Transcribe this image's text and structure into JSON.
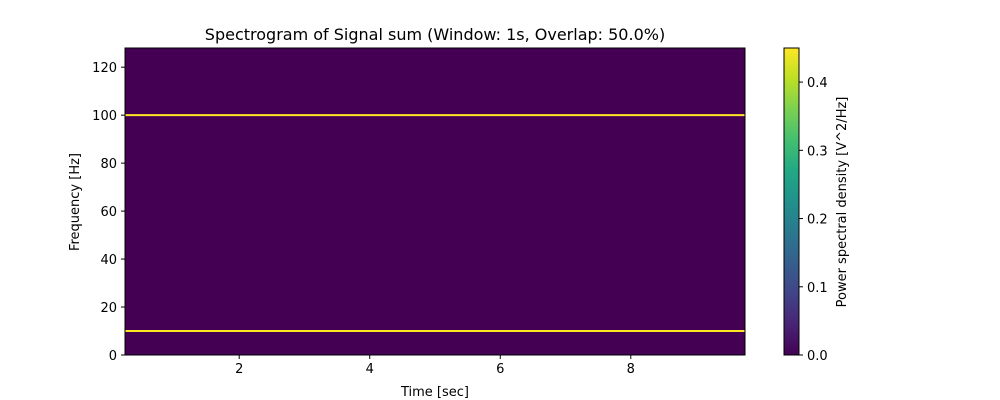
{
  "chart_data": {
    "type": "heatmap",
    "title": "Spectrogram of Signal sum (Window: 1s, Overlap: 50.0%)",
    "xlabel": "Time [sec]",
    "ylabel": "Frequency [Hz]",
    "xlim": [
      0.25,
      9.75
    ],
    "ylim": [
      0,
      128
    ],
    "xticks": [
      2,
      4,
      6,
      8
    ],
    "yticks": [
      0,
      20,
      40,
      60,
      80,
      100,
      120
    ],
    "grid": false,
    "background_value": 0.0,
    "tones": [
      {
        "frequency": 10,
        "power": 0.45
      },
      {
        "frequency": 100,
        "power": 0.45
      }
    ],
    "colorbar": {
      "label": "Power spectral density [V^2/Hz]",
      "colormap": "viridis",
      "range": [
        0.0,
        0.45
      ],
      "ticks": [
        0.0,
        0.1,
        0.2,
        0.3,
        0.4
      ]
    },
    "colors": {
      "background": "#440154",
      "peak": "#fde725"
    }
  }
}
